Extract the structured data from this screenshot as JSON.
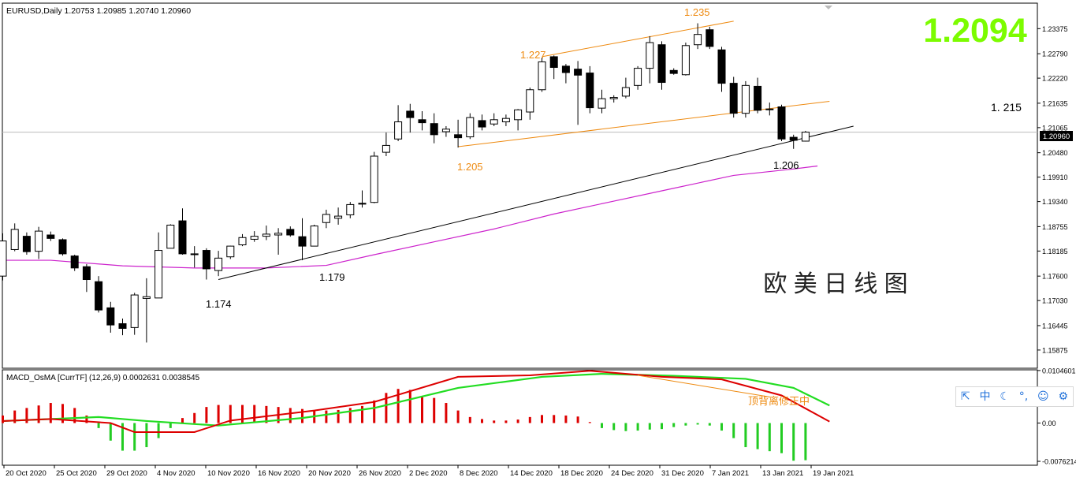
{
  "header": {
    "symbol_info": "EURUSD,Daily  1.20753 1.20985 1.20740 1.20960",
    "big_price": "1.2094"
  },
  "indicator": {
    "label": "MACD_OsMA [CurrTF] (12,26,9) 0.0002631 0.0038545"
  },
  "annotations": {
    "title_cn": "欧 美 日 线 图",
    "level_1215": "1. 215",
    "lbl_1235": "1.235",
    "lbl_1227": "1.227",
    "lbl_1205": "1.205",
    "lbl_1206": "1.206",
    "lbl_1179": "1.179",
    "lbl_1174": "1.174",
    "macd_note": "顶背离修正中",
    "current_price_tag": "1.20960"
  },
  "ime_toolbar": {
    "items": [
      "⇱",
      "中",
      "☾",
      "°,",
      "☺",
      "⚙"
    ]
  },
  "colors": {
    "bull_body": "#ffffff",
    "bear_body": "#000000",
    "ma_line": "#cc22cc",
    "channel_line": "#ee8a10",
    "trend_line": "#000000",
    "macd_line": "#dd0000",
    "signal_line": "#22dd22",
    "hist_positive": "#dd0000",
    "hist_negative": "#22cc22",
    "big_price": "#7cfc00",
    "annotation_orange": "#ee8a10"
  },
  "chart_data": {
    "type": "candlestick",
    "price_axis": {
      "range": [
        1.1545,
        1.2397
      ],
      "ticks": [
        "1.23375",
        "1.22790",
        "1.22220",
        "1.21635",
        "1.21065",
        "1.20480",
        "1.19910",
        "1.19340",
        "1.18755",
        "1.18185",
        "1.17600",
        "1.17030",
        "1.16445",
        "1.15875"
      ]
    },
    "x_axis_labels": [
      "20 Oct 2020",
      "25 Oct 2020",
      "29 Oct 2020",
      "4 Nov 2020",
      "10 Nov 2020",
      "16 Nov 2020",
      "20 Nov 2020",
      "26 Nov 2020",
      "2 Dec 2020",
      "8 Dec 2020",
      "14 Dec 2020",
      "18 Dec 2020",
      "24 Dec 2020",
      "31 Dec 2020",
      "7 Jan 2021",
      "13 Jan 2021",
      "19 Jan 2021"
    ],
    "candles": [
      {
        "o": 1.176,
        "h": 1.186,
        "l": 1.175,
        "c": 1.1842
      },
      {
        "o": 1.1822,
        "h": 1.1883,
        "l": 1.1818,
        "c": 1.1869
      },
      {
        "o": 1.1853,
        "h": 1.1862,
        "l": 1.181,
        "c": 1.1817
      },
      {
        "o": 1.1818,
        "h": 1.1875,
        "l": 1.18,
        "c": 1.1865
      },
      {
        "o": 1.1856,
        "h": 1.1864,
        "l": 1.1842,
        "c": 1.1848
      },
      {
        "o": 1.1845,
        "h": 1.1848,
        "l": 1.1808,
        "c": 1.1812
      },
      {
        "o": 1.1807,
        "h": 1.181,
        "l": 1.1772,
        "c": 1.1779
      },
      {
        "o": 1.1782,
        "h": 1.1788,
        "l": 1.1723,
        "c": 1.1752
      },
      {
        "o": 1.1747,
        "h": 1.176,
        "l": 1.1675,
        "c": 1.1681
      },
      {
        "o": 1.1686,
        "h": 1.17,
        "l": 1.1628,
        "c": 1.1646
      },
      {
        "o": 1.1649,
        "h": 1.1661,
        "l": 1.1622,
        "c": 1.1638
      },
      {
        "o": 1.164,
        "h": 1.1721,
        "l": 1.1623,
        "c": 1.1716
      },
      {
        "o": 1.1708,
        "h": 1.1755,
        "l": 1.1605,
        "c": 1.1712
      },
      {
        "o": 1.1709,
        "h": 1.1862,
        "l": 1.1712,
        "c": 1.182
      },
      {
        "o": 1.1825,
        "h": 1.1881,
        "l": 1.1825,
        "c": 1.1879
      },
      {
        "o": 1.1889,
        "h": 1.1918,
        "l": 1.181,
        "c": 1.1812
      },
      {
        "o": 1.1812,
        "h": 1.183,
        "l": 1.178,
        "c": 1.181
      },
      {
        "o": 1.182,
        "h": 1.1825,
        "l": 1.1752,
        "c": 1.1777
      },
      {
        "o": 1.1773,
        "h": 1.1819,
        "l": 1.176,
        "c": 1.1802
      },
      {
        "o": 1.1805,
        "h": 1.1831,
        "l": 1.18,
        "c": 1.183
      },
      {
        "o": 1.1833,
        "h": 1.1858,
        "l": 1.183,
        "c": 1.185
      },
      {
        "o": 1.1846,
        "h": 1.1865,
        "l": 1.184,
        "c": 1.1853
      },
      {
        "o": 1.1853,
        "h": 1.1878,
        "l": 1.1844,
        "c": 1.1858
      },
      {
        "o": 1.1856,
        "h": 1.1872,
        "l": 1.181,
        "c": 1.186
      },
      {
        "o": 1.1869,
        "h": 1.1876,
        "l": 1.1852,
        "c": 1.1856
      },
      {
        "o": 1.1852,
        "h": 1.1895,
        "l": 1.1797,
        "c": 1.183
      },
      {
        "o": 1.183,
        "h": 1.188,
        "l": 1.183,
        "c": 1.1877
      },
      {
        "o": 1.1885,
        "h": 1.1915,
        "l": 1.1872,
        "c": 1.1904
      },
      {
        "o": 1.1895,
        "h": 1.192,
        "l": 1.188,
        "c": 1.19
      },
      {
        "o": 1.1903,
        "h": 1.1933,
        "l": 1.1895,
        "c": 1.1927
      },
      {
        "o": 1.193,
        "h": 1.196,
        "l": 1.192,
        "c": 1.1928
      },
      {
        "o": 1.1932,
        "h": 1.205,
        "l": 1.193,
        "c": 1.204
      },
      {
        "o": 1.2049,
        "h": 1.2095,
        "l": 1.204,
        "c": 1.2065
      },
      {
        "o": 1.208,
        "h": 1.2159,
        "l": 1.2075,
        "c": 1.212
      },
      {
        "o": 1.2145,
        "h": 1.2162,
        "l": 1.2095,
        "c": 1.213
      },
      {
        "o": 1.2125,
        "h": 1.2145,
        "l": 1.21,
        "c": 1.2118
      },
      {
        "o": 1.2116,
        "h": 1.214,
        "l": 1.207,
        "c": 1.209
      },
      {
        "o": 1.2097,
        "h": 1.211,
        "l": 1.2085,
        "c": 1.2103
      },
      {
        "o": 1.209,
        "h": 1.2125,
        "l": 1.206,
        "c": 1.2083
      },
      {
        "o": 1.2085,
        "h": 1.214,
        "l": 1.208,
        "c": 1.213
      },
      {
        "o": 1.2123,
        "h": 1.2137,
        "l": 1.21,
        "c": 1.2108
      },
      {
        "o": 1.2115,
        "h": 1.214,
        "l": 1.211,
        "c": 1.2125
      },
      {
        "o": 1.212,
        "h": 1.2137,
        "l": 1.211,
        "c": 1.2128
      },
      {
        "o": 1.2125,
        "h": 1.215,
        "l": 1.21,
        "c": 1.2148
      },
      {
        "o": 1.2143,
        "h": 1.22,
        "l": 1.2125,
        "c": 1.2195
      },
      {
        "o": 1.2195,
        "h": 1.227,
        "l": 1.219,
        "c": 1.226
      },
      {
        "o": 1.2272,
        "h": 1.2275,
        "l": 1.222,
        "c": 1.2247
      },
      {
        "o": 1.225,
        "h": 1.2255,
        "l": 1.221,
        "c": 1.2235
      },
      {
        "o": 1.2243,
        "h": 1.2262,
        "l": 1.2113,
        "c": 1.2229
      },
      {
        "o": 1.2234,
        "h": 1.225,
        "l": 1.214,
        "c": 1.2153
      },
      {
        "o": 1.2152,
        "h": 1.2195,
        "l": 1.214,
        "c": 1.2174
      },
      {
        "o": 1.2174,
        "h": 1.2182,
        "l": 1.2165,
        "c": 1.2177
      },
      {
        "o": 1.218,
        "h": 1.2223,
        "l": 1.2175,
        "c": 1.22
      },
      {
        "o": 1.2205,
        "h": 1.225,
        "l": 1.2195,
        "c": 1.2245
      },
      {
        "o": 1.2245,
        "h": 1.232,
        "l": 1.221,
        "c": 1.2305
      },
      {
        "o": 1.23,
        "h": 1.2308,
        "l": 1.2195,
        "c": 1.2212
      },
      {
        "o": 1.224,
        "h": 1.2245,
        "l": 1.223,
        "c": 1.2233
      },
      {
        "o": 1.223,
        "h": 1.2305,
        "l": 1.2228,
        "c": 1.2298
      },
      {
        "o": 1.23,
        "h": 1.235,
        "l": 1.229,
        "c": 1.2324
      },
      {
        "o": 1.2335,
        "h": 1.2342,
        "l": 1.229,
        "c": 1.2296
      },
      {
        "o": 1.2288,
        "h": 1.2295,
        "l": 1.219,
        "c": 1.221
      },
      {
        "o": 1.221,
        "h": 1.2225,
        "l": 1.213,
        "c": 1.214
      },
      {
        "o": 1.214,
        "h": 1.2215,
        "l": 1.213,
        "c": 1.2205
      },
      {
        "o": 1.2203,
        "h": 1.2223,
        "l": 1.214,
        "c": 1.2147
      },
      {
        "o": 1.215,
        "h": 1.2165,
        "l": 1.2135,
        "c": 1.215
      },
      {
        "o": 1.2155,
        "h": 1.216,
        "l": 1.2075,
        "c": 1.208
      },
      {
        "o": 1.2084,
        "h": 1.209,
        "l": 1.2057,
        "c": 1.2077
      },
      {
        "o": 1.2075,
        "h": 1.2099,
        "l": 1.2074,
        "c": 1.2096
      }
    ],
    "moving_average": [
      {
        "i": 0,
        "v": 1.1797
      },
      {
        "i": 4,
        "v": 1.1797
      },
      {
        "i": 10,
        "v": 1.1784
      },
      {
        "i": 16,
        "v": 1.1779
      },
      {
        "i": 22,
        "v": 1.1779
      },
      {
        "i": 27,
        "v": 1.1785
      },
      {
        "i": 31,
        "v": 1.181
      },
      {
        "i": 36,
        "v": 1.184
      },
      {
        "i": 41,
        "v": 1.187
      },
      {
        "i": 46,
        "v": 1.1905
      },
      {
        "i": 51,
        "v": 1.1935
      },
      {
        "i": 56,
        "v": 1.1965
      },
      {
        "i": 61,
        "v": 1.1995
      },
      {
        "i": 66,
        "v": 1.201
      },
      {
        "i": 68,
        "v": 1.2017
      }
    ],
    "channel_upper": [
      {
        "i": 45,
        "v": 1.2272
      },
      {
        "i": 61,
        "v": 1.2355
      }
    ],
    "channel_lower": [
      {
        "i": 38,
        "v": 1.2062
      },
      {
        "i": 69,
        "v": 1.2168
      }
    ],
    "trend_support": [
      {
        "i": 18,
        "v": 1.1752
      },
      {
        "i": 71,
        "v": 1.211
      }
    ],
    "macd": {
      "axis_ticks": [
        "0.0104601",
        "0.00",
        "-0.0076214"
      ],
      "histogram": [
        0.0015,
        0.0025,
        0.003,
        0.0035,
        0.004,
        0.0038,
        0.003,
        0.0015,
        -0.001,
        -0.0035,
        -0.0055,
        -0.0055,
        -0.0048,
        -0.003,
        -0.001,
        0.001,
        0.002,
        0.0032,
        0.0036,
        0.0036,
        0.0036,
        0.0036,
        0.0034,
        0.0032,
        0.003,
        0.0028,
        0.0025,
        0.0025,
        0.0026,
        0.003,
        0.0034,
        0.0045,
        0.006,
        0.0068,
        0.0066,
        0.0054,
        0.005,
        0.004,
        0.0025,
        0.0012,
        0.0008,
        0.0005,
        0.0005,
        0.0007,
        0.0012,
        0.0016,
        0.0016,
        0.0015,
        0.0013,
        0.0002,
        -0.001,
        -0.0014,
        -0.0016,
        -0.0015,
        -0.0013,
        -0.0012,
        -0.0008,
        -0.0005,
        -0.0003,
        -0.0005,
        -0.0015,
        -0.003,
        -0.0048,
        -0.0052,
        -0.0056,
        -0.006,
        -0.0075,
        -0.0074
      ],
      "macd_line": [
        {
          "i": 0,
          "v": 0.0004
        },
        {
          "i": 4,
          "v": 0.0008
        },
        {
          "i": 9,
          "v": 0.0
        },
        {
          "i": 11,
          "v": -0.0018
        },
        {
          "i": 16,
          "v": -0.0018
        },
        {
          "i": 19,
          "v": 0.0005
        },
        {
          "i": 26,
          "v": 0.0025
        },
        {
          "i": 31,
          "v": 0.0042
        },
        {
          "i": 38,
          "v": 0.0092
        },
        {
          "i": 44,
          "v": 0.0095
        },
        {
          "i": 49,
          "v": 0.0104
        },
        {
          "i": 55,
          "v": 0.0092
        },
        {
          "i": 60,
          "v": 0.0087
        },
        {
          "i": 65,
          "v": 0.0055
        },
        {
          "i": 69,
          "v": 0.0003
        }
      ],
      "signal_line": [
        {
          "i": 0,
          "v": 0.0004
        },
        {
          "i": 8,
          "v": 0.0012
        },
        {
          "i": 12,
          "v": 0.0004
        },
        {
          "i": 18,
          "v": -0.0005
        },
        {
          "i": 25,
          "v": 0.001
        },
        {
          "i": 31,
          "v": 0.003
        },
        {
          "i": 38,
          "v": 0.007
        },
        {
          "i": 45,
          "v": 0.0092
        },
        {
          "i": 50,
          "v": 0.0098
        },
        {
          "i": 56,
          "v": 0.0094
        },
        {
          "i": 62,
          "v": 0.0088
        },
        {
          "i": 66,
          "v": 0.007
        },
        {
          "i": 69,
          "v": 0.0035
        }
      ],
      "divergence_line": [
        {
          "i": 53,
          "v": 0.0095
        },
        {
          "i": 64,
          "v": 0.0052
        }
      ]
    }
  }
}
